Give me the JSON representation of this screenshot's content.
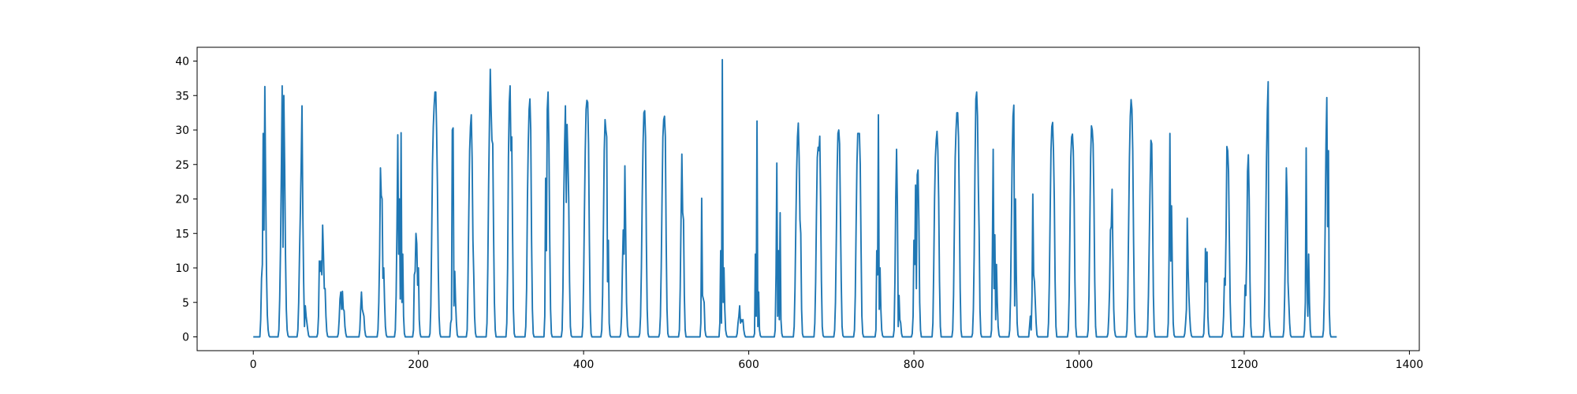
{
  "chart_data": {
    "type": "line",
    "title": "",
    "xlabel": "",
    "ylabel": "",
    "xlim": [
      -68,
      1412
    ],
    "ylim": [
      -2,
      42
    ],
    "xticks": [
      0,
      200,
      400,
      600,
      800,
      1000,
      1200,
      1400
    ],
    "yticks": [
      0,
      5,
      10,
      15,
      20,
      25,
      30,
      35,
      40
    ],
    "xtick_labels": [
      "0",
      "200",
      "400",
      "600",
      "800",
      "1000",
      "1200",
      "1400"
    ],
    "ytick_labels": [
      "0",
      "5",
      "10",
      "15",
      "20",
      "25",
      "30",
      "35",
      "40"
    ],
    "grid": false,
    "legend": "none",
    "line_color": "#1f77b4",
    "series": [
      {
        "x_start": 0,
        "x_step": 1,
        "values": [
          0,
          0,
          0,
          0,
          0,
          0,
          0,
          0,
          0,
          2.5,
          8.5,
          10.5,
          29.5,
          15.5,
          36.3,
          22.0,
          9.5,
          3.2,
          1.0,
          0.2,
          0,
          0,
          0,
          0,
          0,
          0,
          0,
          0,
          0,
          0,
          0,
          1.0,
          5.5,
          13.0,
          24.0,
          36.4,
          13.0,
          35.0,
          25.0,
          12.0,
          4.0,
          1.0,
          0.2,
          0,
          0,
          0,
          0,
          0,
          0,
          0,
          0,
          0,
          0,
          0,
          1.0,
          5.0,
          12.0,
          18.0,
          25.0,
          33.5,
          18.0,
          8.0,
          1.5,
          4.5,
          3.0,
          2.0,
          1.0,
          0.2,
          0,
          0,
          0,
          0,
          0,
          0,
          0,
          0,
          0,
          0,
          0.5,
          3.0,
          11.0,
          9.5,
          11.0,
          9.0,
          16.2,
          12.0,
          7.0,
          7.0,
          3.0,
          0.8,
          0.1,
          0,
          0,
          0,
          0,
          0,
          0,
          0,
          0,
          0,
          0,
          0,
          0,
          0.5,
          2.5,
          5.5,
          6.5,
          4.0,
          6.6,
          4.0,
          3.8,
          1.5,
          0.5,
          0,
          0,
          0,
          0,
          0,
          0,
          0,
          0,
          0,
          0,
          0,
          0,
          0,
          0,
          0,
          0,
          1.0,
          4.0,
          6.5,
          4.0,
          3.5,
          3.0,
          1.0,
          0.2,
          0,
          0,
          0,
          0,
          0,
          0,
          0,
          0,
          0,
          0,
          0,
          0,
          0,
          0,
          1.0,
          5.0,
          12.0,
          24.5,
          20.5,
          20.0,
          8.5,
          10.0,
          5.0,
          1.5,
          0.3,
          0,
          0,
          0,
          0,
          0,
          0,
          0,
          0,
          0,
          0,
          1.0,
          6.0,
          16.0,
          29.3,
          12.0,
          20.0,
          5.5,
          29.6,
          5.0,
          12.0,
          3.0,
          0.5,
          0,
          0,
          0,
          0,
          0,
          0,
          0,
          0,
          0,
          0,
          1.0,
          9.0,
          9.5,
          15.0,
          13.5,
          7.5,
          10.0,
          2.5,
          0.5,
          0,
          0,
          0,
          0,
          0,
          0,
          0,
          0,
          0,
          0,
          0,
          0.5,
          4.5,
          14.0,
          25.0,
          30.5,
          33.5,
          35.5,
          35.5,
          30.0,
          22.0,
          10.0,
          3.0,
          0.5,
          0,
          0,
          0,
          0,
          0,
          0,
          0,
          0,
          0,
          0,
          0,
          0,
          2.0,
          2.5,
          30.0,
          30.3,
          4.5,
          9.5,
          5.0,
          2.0,
          0.3,
          0,
          0,
          0,
          0,
          0,
          0,
          0,
          0,
          0,
          0,
          0,
          1.0,
          8.0,
          18.0,
          27.0,
          30.5,
          32.2,
          26.0,
          14.0,
          9.0,
          3.0,
          0.6,
          0,
          0,
          0,
          0,
          0,
          0,
          0,
          0,
          0,
          0,
          0,
          0,
          0,
          2.0,
          10.0,
          22.0,
          31.0,
          38.8,
          33.0,
          28.5,
          28.0,
          15.0,
          5.0,
          1.0,
          0,
          0,
          0,
          0,
          0,
          0,
          0,
          0,
          0,
          0,
          0,
          0,
          0,
          2.0,
          10.0,
          26.0,
          34.0,
          36.4,
          27.0,
          29.0,
          15.0,
          4.0,
          0.5,
          0,
          0,
          0,
          0,
          0,
          0,
          0,
          0,
          0,
          0,
          0,
          0,
          0,
          1.5,
          7.0,
          20.0,
          28.0,
          33.0,
          34.5,
          30.0,
          14.0,
          4.0,
          0.5,
          0,
          0,
          0,
          0,
          0,
          0,
          0,
          0,
          0,
          0,
          0,
          0,
          0,
          3.0,
          23.0,
          12.5,
          33.0,
          35.5,
          28.0,
          14.0,
          4.0,
          0.5,
          0,
          0,
          0,
          0,
          0,
          0,
          0,
          0,
          0,
          0,
          0,
          0,
          1.0,
          7.0,
          20.0,
          28.0,
          33.5,
          19.5,
          30.8,
          26.0,
          20.0,
          8.0,
          1.5,
          0.2,
          0,
          0,
          0,
          0,
          0,
          0,
          0,
          0,
          0,
          0,
          0,
          0,
          0,
          1.5,
          8.0,
          18.0,
          27.0,
          33.0,
          34.3,
          34.0,
          28.0,
          14.0,
          4.0,
          0.5,
          0,
          0,
          0,
          0,
          0,
          0,
          0,
          0,
          0,
          0,
          0,
          0,
          1.0,
          6.0,
          16.0,
          27.0,
          31.5,
          30.0,
          29.0,
          8.0,
          14.0,
          2.0,
          0.3,
          0,
          0,
          0,
          0,
          0,
          0,
          0,
          0,
          0,
          0,
          0,
          0,
          0.5,
          3.0,
          10.0,
          15.5,
          12.0,
          24.8,
          15.0,
          5.0,
          1.5,
          0.2,
          0,
          0,
          0,
          0,
          0,
          0,
          0,
          0,
          0,
          0,
          0,
          0,
          0,
          0.5,
          3.0,
          10.0,
          20.0,
          28.0,
          32.5,
          32.8,
          29.0,
          14.0,
          4.0,
          0.5,
          0,
          0,
          0,
          0,
          0,
          0,
          0,
          0,
          0,
          0,
          0,
          0,
          0,
          0.5,
          3.0,
          10.0,
          20.0,
          29.0,
          31.5,
          32.0,
          29.0,
          14.0,
          4.0,
          0.5,
          0,
          0,
          0,
          0,
          0,
          0,
          0,
          0,
          0,
          0,
          0,
          0,
          0,
          1.0,
          7.0,
          17.0,
          26.5,
          18.0,
          17.0,
          6.0,
          1.0,
          0,
          0,
          0,
          0,
          0,
          0,
          0,
          0,
          0,
          0,
          0,
          0,
          0,
          0,
          0,
          0,
          0,
          0,
          2.0,
          20.1,
          6.0,
          5.5,
          5.0,
          1.0,
          0.2,
          0,
          0,
          0,
          0,
          0,
          0,
          0,
          0,
          0,
          0,
          0,
          0,
          0,
          0,
          0,
          0,
          2.0,
          12.5,
          2.0,
          40.2,
          5.0,
          10.0,
          4.0,
          1.0,
          0.3,
          0,
          0,
          0,
          0,
          0,
          0,
          0,
          0,
          0,
          0,
          0,
          0,
          0.5,
          2.0,
          3.0,
          4.5,
          2.0,
          2.5,
          2.2,
          2.5,
          1.0,
          0.3,
          0,
          0,
          0,
          0,
          0,
          0,
          0,
          0,
          0,
          0,
          0,
          0.5,
          12.0,
          3.0,
          31.3,
          1.5,
          6.5,
          1.0,
          0.2,
          0,
          0,
          0,
          0,
          0,
          0,
          0,
          0,
          0,
          0,
          0,
          0,
          0,
          0,
          0,
          0,
          0,
          1.0,
          9.0,
          25.2,
          3.0,
          12.5,
          2.5,
          18.0,
          2.5,
          0.5,
          0,
          0,
          0,
          0,
          0,
          0,
          0,
          0,
          0,
          0,
          0,
          0,
          0,
          0,
          1.5,
          7.0,
          16.0,
          24.0,
          29.0,
          31.0,
          26.0,
          17.0,
          15.0,
          4.0,
          0.5,
          0,
          0,
          0,
          0,
          0,
          0,
          0,
          0,
          0,
          0,
          0,
          0,
          0,
          0,
          2.0,
          8.0,
          18.0,
          26.0,
          27.5,
          27.0,
          29.1,
          20.0,
          8.0,
          1.5,
          0.2,
          0,
          0,
          0,
          0,
          0,
          0,
          0,
          0,
          0,
          0,
          0,
          0,
          0,
          1.0,
          5.0,
          14.0,
          24.0,
          29.5,
          30.0,
          28.0,
          18.0,
          8.0,
          1.5,
          0.2,
          0,
          0,
          0,
          0,
          0,
          0,
          0,
          0,
          0,
          0,
          0,
          0,
          0,
          1.0,
          6.0,
          16.0,
          25.0,
          29.5,
          29.5,
          29.5,
          25.0,
          13.0,
          3.0,
          0.5,
          0,
          0,
          0,
          0,
          0,
          0,
          0,
          0,
          0,
          0,
          0,
          0,
          0,
          0,
          0,
          1.0,
          12.5,
          9.0,
          32.2,
          4.0,
          10.0,
          4.0,
          1.0,
          0.2,
          0,
          0,
          0,
          0,
          0,
          0,
          0,
          0,
          0,
          0,
          0,
          0,
          0,
          1.0,
          8.0,
          20.0,
          27.2,
          19.0,
          1.5,
          6.0,
          2.5,
          2.0,
          0.5,
          0,
          0,
          0,
          0,
          0,
          0,
          0,
          0,
          0,
          0,
          0,
          0,
          0.5,
          3.0,
          14.0,
          10.5,
          22.0,
          7.0,
          23.5,
          24.2,
          17.0,
          5.0,
          1.0,
          0,
          0,
          0,
          0,
          0,
          0,
          0,
          0,
          0,
          0,
          0,
          0,
          0,
          0,
          2.0,
          10.0,
          20.0,
          26.0,
          28.5,
          29.8,
          27.0,
          20.0,
          8.0,
          1.5,
          0,
          0,
          0,
          0,
          0,
          0,
          0,
          0,
          0,
          0,
          0,
          0,
          0,
          0,
          1.0,
          6.0,
          16.0,
          26.0,
          30.0,
          32.5,
          32.5,
          29.0,
          19.0,
          7.0,
          1.0,
          0,
          0,
          0,
          0,
          0,
          0,
          0,
          0,
          0,
          0,
          0,
          0,
          0,
          0.5,
          4.0,
          12.0,
          25.0,
          34.5,
          35.5,
          32.0,
          22.0,
          15.2,
          4.0,
          0.5,
          0,
          0,
          0,
          0,
          0,
          0,
          0,
          0,
          0,
          0,
          0,
          0,
          1.0,
          12.0,
          27.2,
          7.0,
          14.8,
          2.5,
          10.5,
          5.0,
          1.5,
          0.3,
          0,
          0,
          0,
          0,
          0,
          0,
          0,
          0,
          0,
          0,
          0,
          0,
          1.0,
          6.0,
          16.0,
          26.0,
          32.0,
          33.6,
          4.5,
          20.0,
          9.0,
          2.0,
          0.3,
          0,
          0,
          0,
          0,
          0,
          0,
          0,
          0,
          0,
          0,
          0,
          0,
          0,
          1.5,
          3.0,
          1.0,
          6.0,
          20.7,
          9.0,
          8.0,
          5.0,
          2.0,
          0.3,
          0,
          0,
          0,
          0,
          0,
          0,
          0,
          0,
          0,
          0,
          0,
          0,
          0,
          2.0,
          8.0,
          18.0,
          27.0,
          30.5,
          31.1,
          27.0,
          20.0,
          8.0,
          1.5,
          0,
          0,
          0,
          0,
          0,
          0,
          0,
          0,
          0,
          0,
          0,
          0,
          0,
          0,
          1.0,
          6.0,
          16.0,
          26.0,
          29.0,
          29.4,
          27.0,
          20.0,
          8.0,
          1.5,
          0,
          0,
          0,
          0,
          0,
          0,
          0,
          0,
          0,
          0,
          0,
          0,
          0,
          0,
          1.0,
          6.0,
          16.0,
          26.0,
          30.6,
          30.0,
          28.0,
          20.0,
          8.0,
          1.5,
          0,
          0,
          0,
          0,
          0,
          0,
          0,
          0,
          0,
          0,
          0,
          0,
          0,
          0,
          0.5,
          3.0,
          7.0,
          15.5,
          16.0,
          21.4,
          12.0,
          4.0,
          1.0,
          0.2,
          0,
          0,
          0,
          0,
          0,
          0,
          0,
          0,
          0,
          0,
          0,
          0,
          0,
          1.0,
          6.0,
          16.0,
          26.0,
          32.0,
          34.4,
          33.0,
          27.0,
          14.0,
          4.0,
          0.5,
          0,
          0,
          0,
          0,
          0,
          0,
          0,
          0,
          0,
          0,
          0,
          0,
          0,
          0,
          1.0,
          6.0,
          14.0,
          22.0,
          28.5,
          28.0,
          18.0,
          6.0,
          1.0,
          0,
          0,
          0,
          0,
          0,
          0,
          0,
          0,
          0,
          0,
          0,
          0,
          0,
          0,
          0,
          0,
          2.0,
          12.0,
          29.5,
          11.0,
          19.0,
          9.0,
          2.0,
          0.3,
          0,
          0,
          0,
          0,
          0,
          0,
          0,
          0,
          0,
          0,
          0,
          0,
          0.5,
          2.0,
          4.0,
          17.2,
          10.0,
          6.0,
          3.0,
          1.0,
          0.2,
          0,
          0,
          0,
          0,
          0,
          0,
          0,
          0,
          0,
          0,
          0,
          0,
          0,
          0,
          0.5,
          4.0,
          12.8,
          8.0,
          12.3,
          3.0,
          0.5,
          0,
          0,
          0,
          0,
          0,
          0,
          0,
          0,
          0,
          0,
          0,
          0,
          0,
          0,
          0,
          0,
          0.5,
          3.0,
          8.5,
          7.5,
          15.0,
          27.6,
          27.0,
          24.0,
          14.0,
          5.0,
          1.0,
          0,
          0,
          0,
          0,
          0,
          0,
          0,
          0,
          0,
          0,
          0,
          0,
          0,
          0,
          0,
          2.0,
          7.5,
          6.0,
          12.0,
          24.0,
          26.4,
          20.0,
          8.0,
          1.5,
          0,
          0,
          0,
          0,
          0,
          0,
          0,
          0,
          0,
          0,
          0,
          0,
          0,
          0,
          0,
          1.0,
          6.0,
          16.0,
          26.0,
          33.0,
          37.0,
          3.0,
          1.0,
          0,
          0,
          0,
          0,
          0,
          0,
          0,
          0,
          0,
          0,
          0,
          0,
          0,
          0,
          0,
          0,
          1.0,
          6.0,
          14.0,
          24.5,
          20.0,
          8.0,
          5.0,
          2.0,
          0.3,
          0,
          0,
          0,
          0,
          0,
          0,
          0,
          0,
          0,
          0,
          0,
          0,
          0,
          0,
          0,
          0,
          1.0,
          5.0,
          27.4,
          8.0,
          3.0,
          12.0,
          5.0,
          1.0,
          0,
          0,
          0,
          0,
          0,
          0,
          0,
          0,
          0,
          0,
          0,
          0,
          0,
          0,
          0,
          1.0,
          6.0,
          16.0,
          28.0,
          34.7,
          16.0,
          27.0,
          4.0,
          0.5,
          0,
          0,
          0,
          0,
          0,
          0,
          0,
          0
        ]
      }
    ]
  }
}
